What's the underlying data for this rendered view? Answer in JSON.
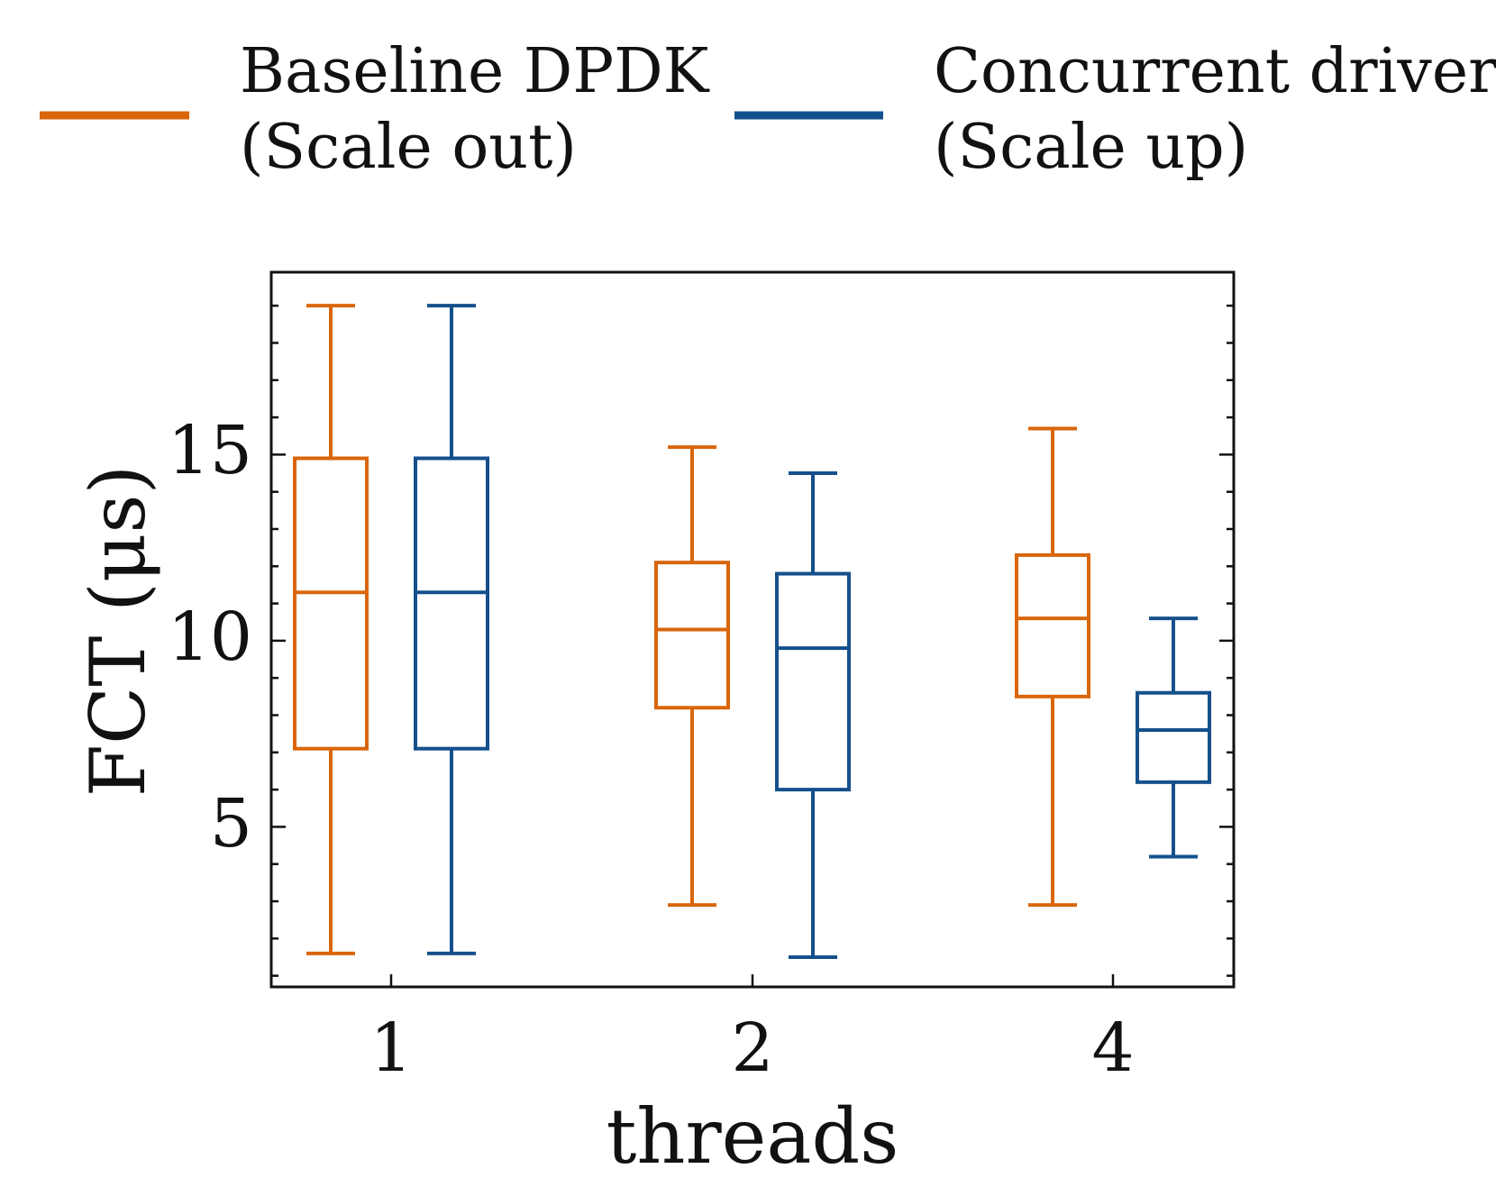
{
  "chart_data": {
    "type": "box",
    "xlabel": "threads",
    "ylabel": "FCT (μs)",
    "categories": [
      "1",
      "2",
      "4"
    ],
    "yticks": [
      "5",
      "10",
      "15"
    ],
    "ylim": [
      0.7,
      19.9
    ],
    "legend_position": "top",
    "series": [
      {
        "name": "Baseline DPDK",
        "name_line2": "(Scale out)",
        "color": "#d9660b",
        "boxes": [
          {
            "whisker_low": 1.6,
            "q1": 7.1,
            "median": 11.3,
            "q3": 14.9,
            "whisker_high": 19.0
          },
          {
            "whisker_low": 2.9,
            "q1": 8.2,
            "median": 10.3,
            "q3": 12.1,
            "whisker_high": 15.2
          },
          {
            "whisker_low": 2.9,
            "q1": 8.5,
            "median": 10.6,
            "q3": 12.3,
            "whisker_high": 15.7
          }
        ]
      },
      {
        "name": "Concurrent driver",
        "name_line2": "(Scale up)",
        "color": "#14508c",
        "boxes": [
          {
            "whisker_low": 1.6,
            "q1": 7.1,
            "median": 11.3,
            "q3": 14.9,
            "whisker_high": 19.0
          },
          {
            "whisker_low": 1.5,
            "q1": 6.0,
            "median": 9.8,
            "q3": 11.8,
            "whisker_high": 14.5
          },
          {
            "whisker_low": 4.2,
            "q1": 6.2,
            "median": 7.6,
            "q3": 8.6,
            "whisker_high": 10.6
          }
        ]
      }
    ]
  }
}
